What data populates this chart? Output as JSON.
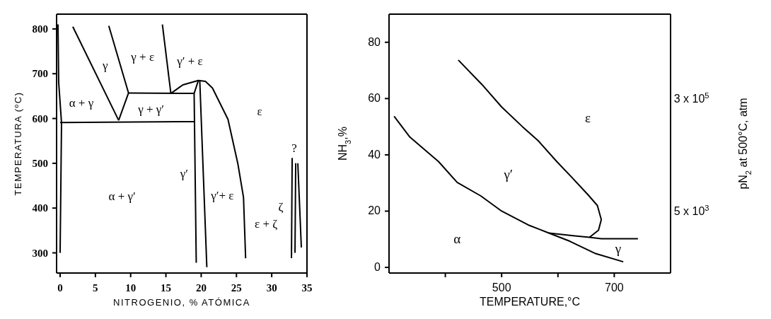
{
  "chart_data": [
    {
      "type": "line",
      "xlabel": "NITROGENIO, % ATÓMICA",
      "ylabel": "TEMPERATURA (ºC)",
      "xlim": [
        -0.5,
        35
      ],
      "ylim": [
        255,
        833
      ],
      "xticks": [
        0,
        5,
        10,
        15,
        20,
        25,
        30,
        35
      ],
      "yticks": [
        300,
        400,
        500,
        600,
        700,
        800
      ],
      "marker": "none",
      "line_style": "solid",
      "grid": false,
      "legend": false,
      "series": [
        {
          "color": "#000000",
          "x": [
            -0.3,
            -0.2,
            0.2,
            0.0
          ],
          "values": [
            810,
            680,
            590,
            300
          ]
        },
        {
          "color": "#000000",
          "x": [
            1.8,
            8.3
          ],
          "values": [
            805,
            596
          ]
        },
        {
          "color": "#000000",
          "x": [
            6.9,
            9.7,
            8.3
          ],
          "values": [
            807,
            657,
            596
          ]
        },
        {
          "color": "#000000",
          "x": [
            0,
            19.0
          ],
          "values": [
            591,
            593
          ]
        },
        {
          "color": "#000000",
          "x": [
            9.7,
            19.0
          ],
          "values": [
            657,
            656
          ]
        },
        {
          "color": "#000000",
          "x": [
            14.5,
            15.7
          ],
          "values": [
            810,
            656
          ]
        },
        {
          "color": "#000000",
          "x": [
            15.7,
            17.4,
            19.6,
            20.6,
            21.6,
            23.8,
            25.2,
            26.0,
            26.3
          ],
          "values": [
            656,
            675,
            685,
            683,
            668,
            598,
            499,
            424,
            288
          ]
        },
        {
          "color": "#000000",
          "x": [
            19.6,
            19.0,
            19.3
          ],
          "values": [
            685,
            656,
            278
          ]
        },
        {
          "color": "#000000",
          "x": [
            19.8,
            20.8
          ],
          "values": [
            685,
            268
          ]
        },
        {
          "color": "#000000",
          "x": [
            32.9,
            32.8
          ],
          "values": [
            512,
            288
          ]
        },
        {
          "color": "#000000",
          "x": [
            33.4,
            33.3
          ],
          "values": [
            500,
            300
          ]
        },
        {
          "color": "#000000",
          "x": [
            33.7,
            34.2
          ],
          "values": [
            500,
            312
          ]
        }
      ],
      "annotations": [
        "α + γ",
        "γ",
        "γ + ε",
        "γ′ + ε",
        "γ + γ′",
        "ε",
        "α + γ′",
        "γ′",
        "γ′+ ε",
        "ζ",
        "ε + ζ",
        "?"
      ]
    },
    {
      "type": "line",
      "xlabel": "TEMPERATURE,°C",
      "ylabel": "NH$_{3}$,%",
      "y2label": "pN$_{2}$ at 500°C, atm",
      "xlim": [
        300,
        800
      ],
      "ylim": [
        -2,
        90
      ],
      "xticks": [
        {
          "value": 400,
          "label": null
        },
        500,
        {
          "value": 600,
          "label": null
        },
        700
      ],
      "yticks": [
        0,
        20,
        40,
        60,
        80
      ],
      "marker": "none",
      "line_style": "solid",
      "grid": false,
      "legend": false,
      "series": [
        {
          "color": "#000000",
          "x": [
            423,
            465,
            500,
            537,
            565,
            598,
            626,
            653,
            670,
            677,
            672,
            656
          ],
          "values": [
            73.7,
            65,
            57,
            50,
            45,
            37.6,
            31.7,
            25.9,
            22,
            17,
            13.2,
            10.7
          ]
        },
        {
          "color": "#000000",
          "x": [
            309,
            337,
            388,
            421,
            463,
            500,
            547,
            584,
            621,
            667,
            716
          ],
          "values": [
            53.7,
            46.3,
            37.6,
            30.2,
            25.4,
            20,
            15.1,
            12.2,
            9.3,
            4.9,
            2.0
          ]
        },
        {
          "color": "#000000",
          "x": [
            584,
            630,
            656,
            677,
            742
          ],
          "values": [
            12.2,
            11.2,
            10.7,
            10.2,
            10.2
          ]
        }
      ],
      "annotations": [
        "ε",
        "γ′",
        "α",
        "γ",
        "5 x 10$^{3}$",
        "3 x 10$^{5}$"
      ]
    }
  ]
}
